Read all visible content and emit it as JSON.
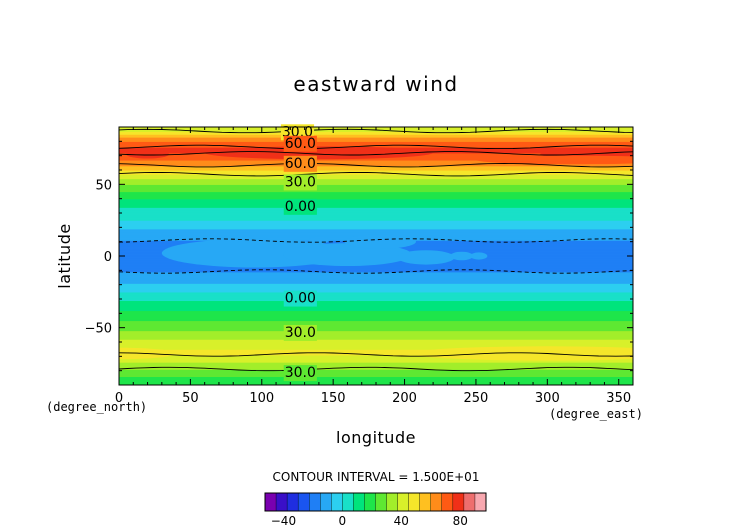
{
  "chart_data": {
    "type": "heatmap",
    "title": "eastward wind",
    "xlabel": "longitude",
    "ylabel": "latitude",
    "x_unit": "(degree_east)",
    "y_unit": "(degree_north)",
    "xlim": [
      0,
      360
    ],
    "ylim": [
      -90,
      90
    ],
    "x_ticks": [
      0,
      50,
      100,
      150,
      200,
      250,
      300,
      350
    ],
    "y_ticks": [
      -50,
      0,
      50
    ],
    "contour_interval_text": "CONTOUR INTERVAL = 1.500E+01",
    "contour_labels": [
      {
        "text": "30.0",
        "lon": 125,
        "lat": 87
      },
      {
        "text": "60.0",
        "lon": 127,
        "lat": 79
      },
      {
        "text": "60.0",
        "lon": 127,
        "lat": 65
      },
      {
        "text": "30.0",
        "lon": 127,
        "lat": 52
      },
      {
        "text": "0.00",
        "lon": 127,
        "lat": 35
      },
      {
        "text": "0.00",
        "lon": 127,
        "lat": -29
      },
      {
        "text": "30.0",
        "lon": 127,
        "lat": -53
      },
      {
        "text": "30.0",
        "lon": 127,
        "lat": -81
      }
    ],
    "colorbar": {
      "levels": [
        -52.5,
        -45,
        -37.5,
        -30,
        -22.5,
        -15,
        -7.5,
        0,
        7.5,
        15,
        22.5,
        30,
        37.5,
        45,
        52.5,
        60,
        67.5,
        75,
        82.5,
        90,
        97.5
      ],
      "colors": [
        "#7a00b0",
        "#3a0fc8",
        "#1f2ee0",
        "#1a55f0",
        "#1f7ff5",
        "#27a8f5",
        "#2ccff0",
        "#19e0c8",
        "#00e47c",
        "#1ee54a",
        "#5ee832",
        "#a2ee2a",
        "#d8f02a",
        "#f5e62a",
        "#ffc020",
        "#ff8c1a",
        "#ff5a14",
        "#f03018",
        "#ee6e6e",
        "#f8a8b0"
      ],
      "tick_labels": [
        -40,
        0,
        40,
        80
      ]
    },
    "zonal_profile": {
      "lat": [
        -90,
        -80,
        -73,
        -67,
        -60,
        -52,
        -45,
        -38,
        -30,
        -25,
        -20,
        -15,
        -8,
        0,
        8,
        15,
        20,
        25,
        30,
        35,
        40,
        45,
        50,
        55,
        60,
        65,
        70,
        75,
        80,
        85,
        90
      ],
      "u": [
        15,
        28,
        40,
        47,
        40,
        30,
        22,
        15,
        6,
        0,
        -6,
        -12,
        -17,
        -19,
        -17,
        -12,
        -6,
        0,
        3,
        8,
        15,
        22,
        30,
        40,
        52,
        64,
        74,
        77,
        68,
        52,
        36
      ]
    },
    "grid": false,
    "legend": "bottom"
  }
}
